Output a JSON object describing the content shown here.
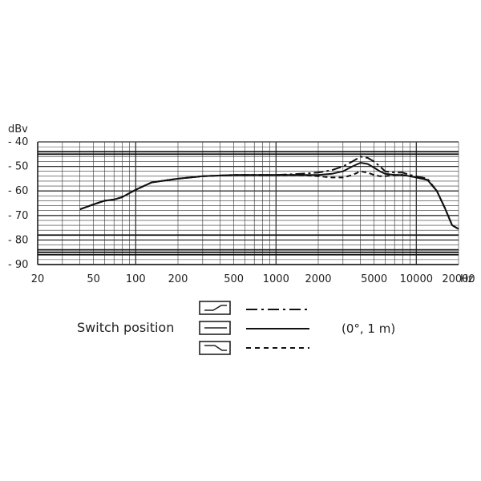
{
  "chart_data": {
    "type": "line",
    "title": "",
    "xlabel": "",
    "ylabel": "",
    "x_unit": "Hz",
    "y_unit": "dBv",
    "x_scale": "log",
    "xlim": [
      20,
      20000
    ],
    "ylim": [
      -90,
      -40
    ],
    "x_ticks": [
      20,
      50,
      100,
      200,
      500,
      1000,
      2000,
      5000,
      10000,
      20000
    ],
    "y_ticks": [
      -40,
      -50,
      -60,
      -70,
      -80,
      -90
    ],
    "x_tick_labels": [
      "20",
      "50",
      "100",
      "200",
      "500",
      "1000",
      "2000",
      "5000",
      "10000",
      "20000"
    ],
    "y_tick_labels": [
      "- 40",
      "- 50",
      "- 60",
      "- 70",
      "- 80",
      "- 90"
    ],
    "grid": true,
    "series": [
      {
        "name": "",
        "style": "dash-dot",
        "x": [
          40,
          50,
          60,
          70,
          80,
          100,
          130,
          200,
          300,
          500,
          1000,
          1500,
          2000,
          2500,
          3000,
          3500,
          4000,
          4500,
          5000,
          5500,
          6000,
          7000,
          8000,
          9000,
          10000,
          12000,
          14000,
          16000,
          18000,
          20000
        ],
        "y": [
          -67.5,
          -65.5,
          -64,
          -63.5,
          -62.5,
          -59.5,
          -56.5,
          -55,
          -54,
          -53.5,
          -53.5,
          -53,
          -52.5,
          -51.5,
          -50,
          -48,
          -46,
          -46.5,
          -48,
          -50,
          -52,
          -52.5,
          -52.5,
          -53.5,
          -54,
          -55,
          -60,
          -67,
          -74,
          -75.5
        ]
      },
      {
        "name": "",
        "style": "solid",
        "x": [
          40,
          50,
          60,
          70,
          80,
          100,
          130,
          200,
          300,
          500,
          1000,
          1500,
          2000,
          2500,
          3000,
          3500,
          4000,
          4500,
          5000,
          5500,
          6000,
          7000,
          8000,
          9000,
          10000,
          12000,
          14000,
          16000,
          18000,
          20000
        ],
        "y": [
          -67.5,
          -65.5,
          -64,
          -63.5,
          -62.5,
          -59.5,
          -56.5,
          -55,
          -54,
          -53.5,
          -53.5,
          -53.5,
          -53.5,
          -53,
          -52,
          -50,
          -48.5,
          -49,
          -50.5,
          -52,
          -53,
          -53.5,
          -53.5,
          -54,
          -54.5,
          -55.5,
          -60,
          -67,
          -74,
          -75.5
        ]
      },
      {
        "name": "",
        "style": "dashed",
        "x": [
          40,
          50,
          60,
          70,
          80,
          100,
          130,
          200,
          300,
          500,
          1000,
          1500,
          2000,
          2500,
          3000,
          3500,
          4000,
          4500,
          5000,
          5500,
          6000,
          7000,
          8000,
          9000,
          10000,
          12000,
          14000,
          16000,
          18000,
          20000
        ],
        "y": [
          -67.5,
          -65.5,
          -64,
          -63.5,
          -62.5,
          -59.5,
          -56.5,
          -55,
          -54,
          -53.5,
          -53.5,
          -53.5,
          -54,
          -54.5,
          -54.5,
          -53.5,
          -52,
          -52.5,
          -53.5,
          -54,
          -54,
          -53.5,
          -53.5,
          -54,
          -54.5,
          -55.5,
          -60,
          -67,
          -74,
          -75.5
        ]
      }
    ],
    "legend": {
      "title": "Switch position",
      "condition": "(0°, 1 m)",
      "placement": "bottom",
      "items": [
        {
          "icon": "bass-rolloff-icon",
          "style": "dash-dot"
        },
        {
          "icon": "flat-icon",
          "style": "solid"
        },
        {
          "icon": "presence-cut-icon",
          "style": "dashed"
        }
      ]
    }
  }
}
